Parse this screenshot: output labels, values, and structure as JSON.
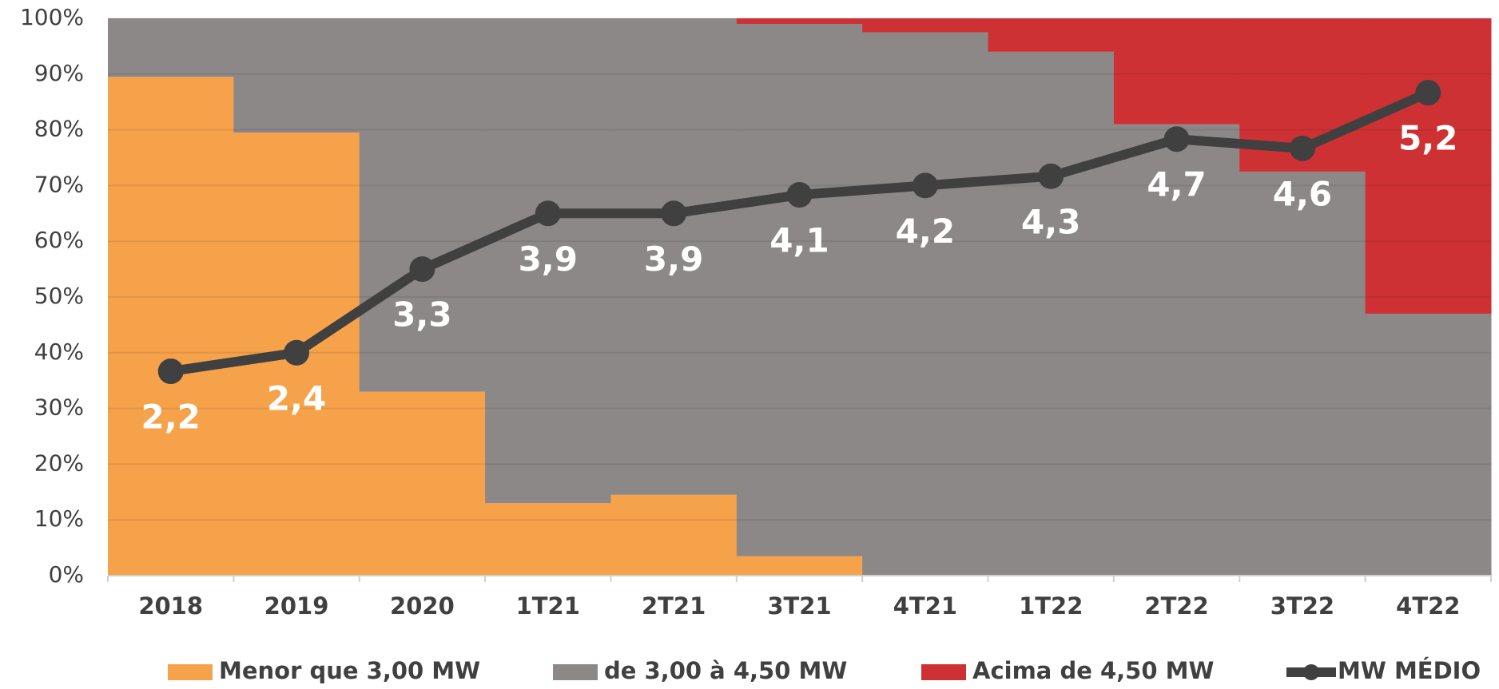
{
  "chart_data": {
    "type": "bar",
    "stacked": true,
    "categories": [
      "2018",
      "2019",
      "2020",
      "1T21",
      "2T21",
      "3T21",
      "4T21",
      "1T22",
      "2T22",
      "3T22",
      "4T22"
    ],
    "series": [
      {
        "name": "Menor que 3,00 MW",
        "color": "#f6a24b",
        "values": [
          89.5,
          79.5,
          33,
          13,
          14.5,
          3.5,
          0,
          0,
          0,
          0,
          0
        ]
      },
      {
        "name": "de 3,00 à 4,50 MW",
        "color": "#8c8887",
        "values": [
          10.5,
          20.5,
          67,
          87,
          85.5,
          95.5,
          97.5,
          94,
          81,
          72.5,
          47
        ]
      },
      {
        "name": "Acima de 4,50 MW",
        "color": "#ce3133",
        "values": [
          0,
          0,
          0,
          0,
          0,
          1,
          2.5,
          6,
          19,
          27.5,
          53
        ]
      },
      {
        "name": "MW MÉDIO",
        "color": "#404040",
        "type": "line",
        "axis": "y2",
        "values": [
          2.2,
          2.4,
          3.3,
          3.9,
          3.9,
          4.1,
          4.2,
          4.3,
          4.7,
          4.6,
          5.2
        ],
        "value_labels": [
          "2,2",
          "2,4",
          "3,3",
          "3,9",
          "3,9",
          "4,1",
          "4,2",
          "4,3",
          "4,7",
          "4,6",
          "5,2"
        ]
      }
    ],
    "ylim": [
      0,
      100
    ],
    "yticks": [
      {
        "value": 0,
        "label": "0%"
      },
      {
        "value": 10,
        "label": "10%"
      },
      {
        "value": 20,
        "label": "20%"
      },
      {
        "value": 30,
        "label": "30%"
      },
      {
        "value": 40,
        "label": "40%"
      },
      {
        "value": 50,
        "label": "50%"
      },
      {
        "value": 60,
        "label": "60%"
      },
      {
        "value": 70,
        "label": "70%"
      },
      {
        "value": 80,
        "label": "80%"
      },
      {
        "value": 90,
        "label": "90%"
      },
      {
        "value": 100,
        "label": "100%"
      }
    ],
    "y2lim": [
      0,
      6
    ],
    "grid": true,
    "legend": "bottom"
  }
}
